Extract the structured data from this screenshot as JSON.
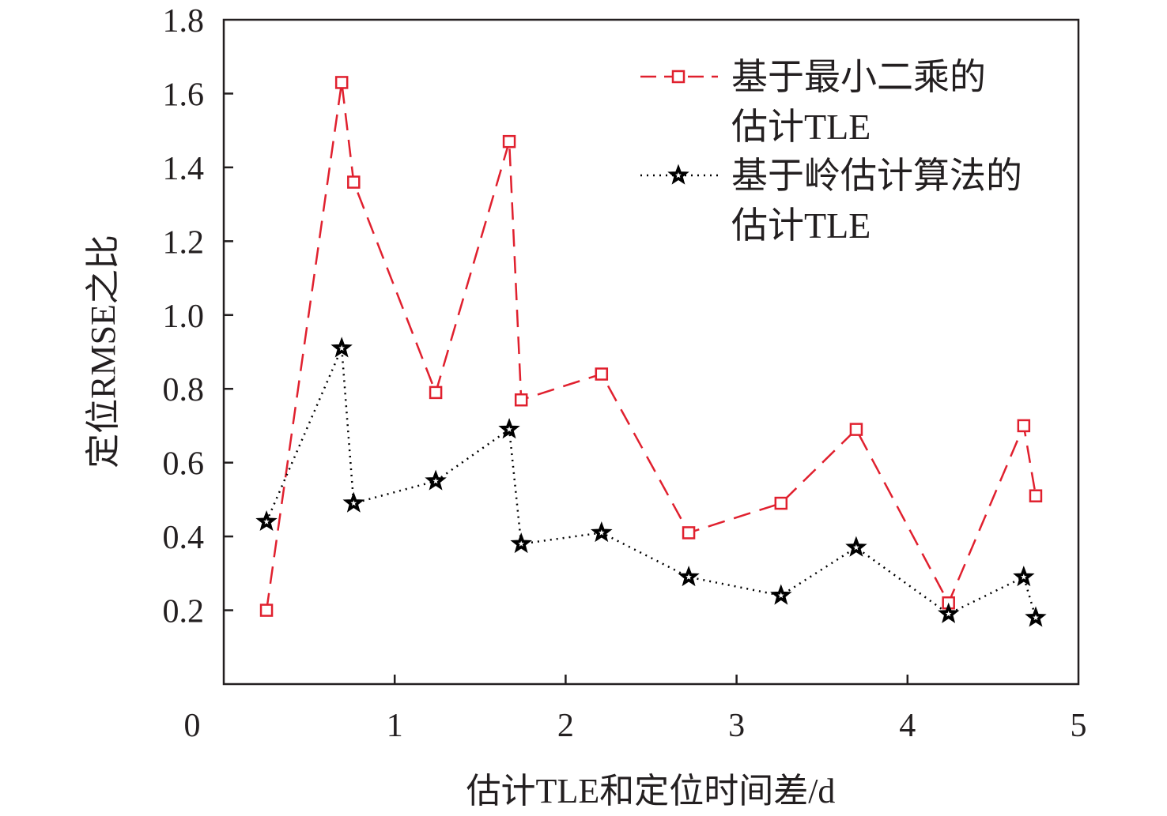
{
  "chart_data": {
    "type": "line",
    "title": "",
    "xlabel": "估计TLE和定位时间差/d",
    "ylabel": "定位RMSE之比",
    "xlim": [
      0,
      5
    ],
    "ylim": [
      0,
      1.8
    ],
    "origin_label": "0",
    "xticks": [
      1,
      2,
      3,
      4,
      5
    ],
    "xtick_labels": [
      "1",
      "2",
      "3",
      "4",
      "5"
    ],
    "yticks": [
      0.2,
      0.4,
      0.6,
      0.8,
      1.0,
      1.2,
      1.4,
      1.6,
      1.8
    ],
    "ytick_labels": [
      "0.2",
      "0.4",
      "0.6",
      "0.8",
      "1.0",
      "1.2",
      "1.4",
      "1.6",
      "1.8"
    ],
    "grid": false,
    "legend_position": "top-right",
    "series": [
      {
        "name_lines": [
          "基于最小二乘的",
          "估计TLE"
        ],
        "color": "#e0202e",
        "line_style": "dashed",
        "marker": "square",
        "x": [
          0.25,
          0.69,
          0.76,
          1.24,
          1.67,
          1.74,
          2.21,
          2.72,
          3.26,
          3.7,
          4.24,
          4.68,
          4.75
        ],
        "y": [
          0.2,
          1.63,
          1.36,
          0.79,
          1.47,
          0.77,
          0.84,
          0.41,
          0.49,
          0.69,
          0.22,
          0.7,
          0.51
        ]
      },
      {
        "name_lines": [
          "基于岭估计算法的",
          "估计TLE"
        ],
        "color": "#000000",
        "line_style": "dotted",
        "marker": "star",
        "x": [
          0.25,
          0.69,
          0.76,
          1.24,
          1.67,
          1.74,
          2.21,
          2.72,
          3.26,
          3.7,
          4.24,
          4.68,
          4.75
        ],
        "y": [
          0.44,
          0.91,
          0.49,
          0.55,
          0.69,
          0.38,
          0.41,
          0.29,
          0.24,
          0.37,
          0.19,
          0.29,
          0.18
        ]
      }
    ]
  }
}
